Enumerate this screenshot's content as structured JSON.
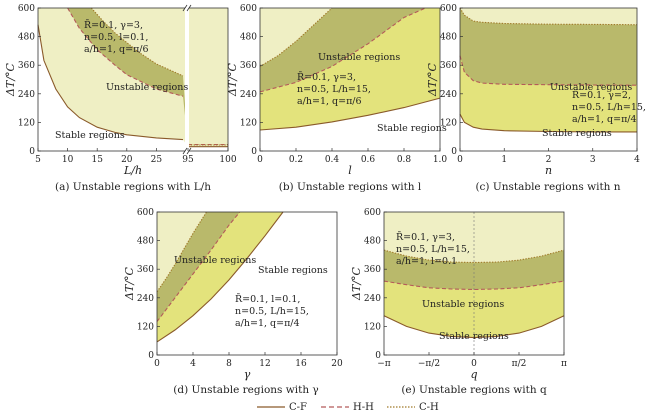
{
  "colors": {
    "stable": "#ffffff",
    "light_yellow": "#efefc4",
    "medium_yellow": "#e3e37c",
    "olive": "#b9b96b",
    "cf_line": "#8a5a2a",
    "hh_line": "#b45a5a",
    "ch_line": "#a07a2a",
    "axis": "#333333"
  },
  "legend": {
    "items": [
      {
        "label": "C-F",
        "style": "solid"
      },
      {
        "label": "H-H",
        "style": "dashed"
      },
      {
        "label": "C-H",
        "style": "dotted"
      }
    ]
  },
  "chart_data": [
    {
      "type": "area",
      "caption": "(a) Unstable regions with L/h",
      "xlabel": "L/h",
      "ylabel": "ΔT/°C",
      "ylim": [
        0,
        600
      ],
      "yticks": [
        0,
        120,
        240,
        360,
        480,
        600
      ],
      "xaxis_broken": true,
      "x_segment1": {
        "range": [
          5,
          30
        ],
        "ticks": [
          5,
          10,
          15,
          20,
          25
        ]
      },
      "x_segment2": {
        "range": [
          95,
          100
        ],
        "ticks": [
          95,
          100
        ]
      },
      "labels": [
        "Stable regions",
        "Unstable regions"
      ],
      "params": [
        "R̄=0.1, γ=3,",
        "n=0.5, l=0.1,",
        "a/h=1, q=π/6"
      ],
      "series": [
        {
          "name": "C-F",
          "x": [
            5,
            6,
            8,
            10,
            12,
            15,
            18,
            20,
            25,
            29.5,
            95,
            100
          ],
          "y": [
            530,
            380,
            260,
            185,
            140,
            100,
            78,
            68,
            55,
            48,
            18,
            18
          ]
        },
        {
          "name": "H-H",
          "x": [
            10,
            12,
            15,
            18,
            20,
            25,
            29.5,
            95,
            100
          ],
          "y": [
            600,
            515,
            425,
            360,
            320,
            260,
            230,
            27,
            27
          ]
        },
        {
          "name": "C-H",
          "x": [
            14,
            16,
            18,
            20,
            22,
            25,
            29.5,
            95,
            100
          ],
          "y": [
            600,
            545,
            495,
            455,
            415,
            365,
            315,
            25,
            25
          ]
        }
      ]
    },
    {
      "type": "area",
      "caption": "(b) Unstable regions with l",
      "xlabel": "l",
      "ylabel": "ΔT/°C",
      "xlim": [
        0,
        1.0
      ],
      "ylim": [
        0,
        600
      ],
      "xticks": [
        0,
        0.2,
        0.4,
        0.6,
        0.8,
        1.0
      ],
      "xtick_labels": [
        "0",
        "0.2",
        "0.4",
        "0.6",
        "0.8",
        "1.0"
      ],
      "yticks": [
        0,
        120,
        240,
        360,
        480,
        600
      ],
      "labels": [
        "Unstable regions",
        "Stable regions"
      ],
      "params": [
        "R̄=0.1, γ=3,",
        "n=0.5, L/h=15,",
        "a/h=1, q=π/6"
      ],
      "series": [
        {
          "name": "C-F",
          "x": [
            0,
            0.2,
            0.4,
            0.6,
            0.8,
            1.0
          ],
          "y": [
            88,
            100,
            122,
            150,
            182,
            222
          ]
        },
        {
          "name": "H-H",
          "x": [
            0,
            0.2,
            0.4,
            0.6,
            0.8,
            0.92
          ],
          "y": [
            248,
            288,
            355,
            450,
            560,
            600
          ]
        },
        {
          "name": "C-H",
          "x": [
            0,
            0.1,
            0.2,
            0.3,
            0.4
          ],
          "y": [
            355,
            400,
            460,
            530,
            600
          ]
        }
      ]
    },
    {
      "type": "area",
      "caption": "(c) Unstable regions with n",
      "xlabel": "n",
      "ylabel": "ΔT/°C",
      "xlim": [
        0,
        4
      ],
      "ylim": [
        0,
        600
      ],
      "xticks": [
        0,
        1,
        2,
        3,
        4
      ],
      "yticks": [
        0,
        120,
        240,
        360,
        480,
        600
      ],
      "labels": [
        "Unstable regions",
        "Stable regions"
      ],
      "params": [
        "R̄=0.1, γ=2,",
        "n=0.5, L/h=15,",
        "a/h=1, q=π/4"
      ],
      "series": [
        {
          "name": "C-F",
          "x": [
            0,
            0.1,
            0.3,
            0.5,
            1,
            2,
            3,
            4
          ],
          "y": [
            155,
            120,
            100,
            92,
            85,
            82,
            80,
            80
          ]
        },
        {
          "name": "H-H",
          "x": [
            0,
            0.1,
            0.3,
            0.5,
            1,
            2,
            3,
            4
          ],
          "y": [
            400,
            330,
            295,
            285,
            280,
            278,
            277,
            276
          ]
        },
        {
          "name": "C-H",
          "x": [
            0,
            0.1,
            0.3,
            0.5,
            1,
            2,
            3,
            4
          ],
          "y": [
            600,
            570,
            545,
            540,
            535,
            532,
            531,
            530
          ]
        }
      ]
    },
    {
      "type": "area",
      "caption": "(d) Unstable regions with γ",
      "xlabel": "γ",
      "ylabel": "ΔT/°C",
      "xlim": [
        0,
        20
      ],
      "ylim": [
        0,
        600
      ],
      "xticks": [
        0,
        4,
        8,
        12,
        16,
        20
      ],
      "yticks": [
        0,
        120,
        240,
        360,
        480,
        600
      ],
      "labels": [
        "Unstable regions",
        "Stable regions"
      ],
      "params": [
        "R̄=0.1, l=0.1,",
        "n=0.5, L/h=15,",
        "a/h=1, q=π/4"
      ],
      "series": [
        {
          "name": "C-F",
          "x": [
            0,
            2,
            4,
            6,
            8,
            10,
            12,
            14
          ],
          "y": [
            55,
            105,
            165,
            235,
            315,
            405,
            500,
            600
          ]
        },
        {
          "name": "H-H",
          "x": [
            0,
            2,
            4,
            6,
            8,
            9.2
          ],
          "y": [
            140,
            240,
            340,
            440,
            545,
            600
          ]
        },
        {
          "name": "C-H",
          "x": [
            0,
            1,
            2,
            3,
            4,
            5.5
          ],
          "y": [
            265,
            320,
            380,
            445,
            510,
            600
          ]
        }
      ]
    },
    {
      "type": "area",
      "caption": "(e) Unstable regions with q",
      "xlabel": "q",
      "ylabel": "ΔT/°C",
      "xlim": [
        -3.1416,
        3.1416
      ],
      "ylim": [
        0,
        600
      ],
      "xticks": [
        -3.1416,
        -1.5708,
        0,
        1.5708,
        3.1416
      ],
      "xtick_labels": [
        "−π",
        "−π/2",
        "0",
        "π/2",
        "π"
      ],
      "yticks": [
        0,
        120,
        240,
        360,
        480,
        600
      ],
      "labels": [
        "Unstable regions",
        "Stable regions"
      ],
      "params": [
        "R̄=0.1, γ=3,",
        "n=0.5, L/h=15,",
        "a/h=1, l=0.1"
      ],
      "series": [
        {
          "name": "C-F",
          "x": [
            -3.1416,
            -2.3562,
            -1.5708,
            -0.7854,
            0,
            0.7854,
            1.5708,
            2.3562,
            3.1416
          ],
          "y": [
            165,
            120,
            92,
            78,
            73,
            78,
            92,
            120,
            165
          ]
        },
        {
          "name": "H-H",
          "x": [
            -3.1416,
            -2.3562,
            -1.5708,
            -0.7854,
            0,
            0.7854,
            1.5708,
            2.3562,
            3.1416
          ],
          "y": [
            310,
            295,
            282,
            277,
            275,
            277,
            282,
            295,
            310
          ]
        },
        {
          "name": "C-H",
          "x": [
            -3.1416,
            -2.3562,
            -1.5708,
            -0.7854,
            0,
            0.7854,
            1.5708,
            2.3562,
            3.1416
          ],
          "y": [
            440,
            415,
            398,
            390,
            388,
            390,
            398,
            415,
            440
          ]
        }
      ]
    }
  ]
}
